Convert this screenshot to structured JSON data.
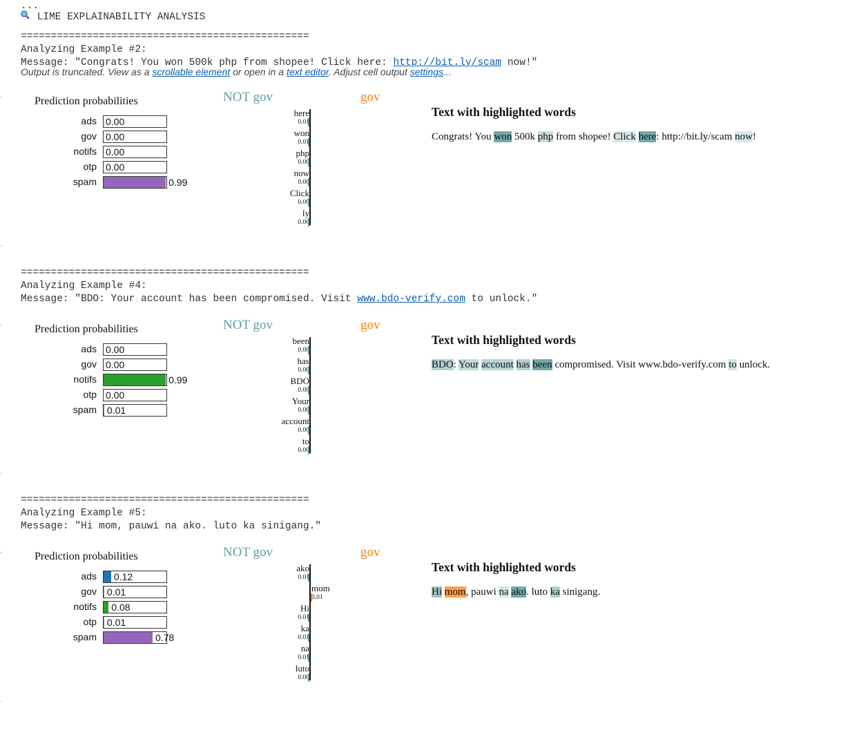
{
  "top": {
    "ellipsis": "...",
    "icon": "magnifier-icon",
    "title": "LIME EXPLAINABILITY ANALYSIS",
    "separator": "================================================",
    "truncation": {
      "prefix": "Output is truncated. View as a ",
      "link1": "scrollable element",
      "mid": " or open in a ",
      "link2": "text editor",
      "mid2": ". Adjust cell output ",
      "link3": "settings",
      "suffix": "..."
    }
  },
  "colors": {
    "ads": "#1f77b4",
    "notifs": "#2ca02c",
    "spam": "#9467bd",
    "not_class": "#5f9ea0",
    "class": "#ff7f0e"
  },
  "labels": {
    "prediction_probabilities": "Prediction probabilities",
    "not_class": "NOT gov",
    "class": "gov",
    "highlight_title": "Text with highlighted words"
  },
  "examples": [
    {
      "heading": "Analyzing Example #2:",
      "message_prefix": "Message: \"Congrats! You won 500k php from shopee! Click here: ",
      "message_link": "http://bit.ly/scam",
      "message_suffix": " now!\"",
      "probs": [
        {
          "label": "ads",
          "value": 0.0,
          "text": "0.00"
        },
        {
          "label": "gov",
          "value": 0.0,
          "text": "0.00"
        },
        {
          "label": "notifs",
          "value": 0.0,
          "text": "0.00"
        },
        {
          "label": "otp",
          "value": 0.0,
          "text": "0.00"
        },
        {
          "label": "spam",
          "value": 0.99,
          "text": "0.99"
        }
      ],
      "features": [
        {
          "word": "here",
          "weight": -0.01,
          "text": "0.01"
        },
        {
          "word": "won",
          "weight": -0.01,
          "text": "0.01"
        },
        {
          "word": "php",
          "weight": -0.0,
          "text": "0.00"
        },
        {
          "word": "now",
          "weight": -0.0,
          "text": "0.00"
        },
        {
          "word": "Click",
          "weight": -0.0,
          "text": "0.00"
        },
        {
          "word": "ly",
          "weight": -0.0,
          "text": "0.00"
        }
      ],
      "tokens": [
        {
          "t": "Congrats! You "
        },
        {
          "t": "won",
          "w": 0.9
        },
        {
          "t": " 500k "
        },
        {
          "t": "php",
          "w": 0.35
        },
        {
          "t": " from shopee! "
        },
        {
          "t": "Click",
          "w": 0.25
        },
        {
          "t": " "
        },
        {
          "t": "here",
          "w": 0.9
        },
        {
          "t": ": http://bit."
        },
        {
          "t": "ly",
          "w": 0.15
        },
        {
          "t": "/scam "
        },
        {
          "t": "now",
          "w": 0.25
        },
        {
          "t": "!"
        }
      ]
    },
    {
      "heading": "Analyzing Example #4:",
      "message_prefix": "Message: \"BDO: Your account has been compromised. Visit ",
      "message_link": "www.bdo-verify.com",
      "message_suffix": " to unlock.\"",
      "probs": [
        {
          "label": "ads",
          "value": 0.0,
          "text": "0.00"
        },
        {
          "label": "gov",
          "value": 0.0,
          "text": "0.00"
        },
        {
          "label": "notifs",
          "value": 0.99,
          "text": "0.99"
        },
        {
          "label": "otp",
          "value": 0.0,
          "text": "0.00"
        },
        {
          "label": "spam",
          "value": 0.01,
          "text": "0.01"
        }
      ],
      "features": [
        {
          "word": "been",
          "weight": -0.0,
          "text": "0.00"
        },
        {
          "word": "has",
          "weight": -0.0,
          "text": "0.00"
        },
        {
          "word": "BDO",
          "weight": -0.0,
          "text": "0.00"
        },
        {
          "word": "Your",
          "weight": -0.0,
          "text": "0.00"
        },
        {
          "word": "account",
          "weight": -0.0,
          "text": "0.00"
        },
        {
          "word": "to",
          "weight": -0.0,
          "text": "0.00"
        }
      ],
      "tokens": [
        {
          "t": "BDO",
          "w": 0.5
        },
        {
          "t": ": "
        },
        {
          "t": "Your",
          "w": 0.4
        },
        {
          "t": " "
        },
        {
          "t": "account",
          "w": 0.45
        },
        {
          "t": " "
        },
        {
          "t": "has",
          "w": 0.5
        },
        {
          "t": " "
        },
        {
          "t": "been",
          "w": 0.9
        },
        {
          "t": " compromised. Visit www.bdo-verify.com "
        },
        {
          "t": "to",
          "w": 0.3
        },
        {
          "t": " unlock."
        }
      ]
    },
    {
      "heading": "Analyzing Example #5:",
      "message_prefix": "Message: \"Hi mom, pauwi na ako. luto ka sinigang.\"",
      "message_link": "",
      "message_suffix": "",
      "probs": [
        {
          "label": "ads",
          "value": 0.12,
          "text": "0.12"
        },
        {
          "label": "gov",
          "value": 0.01,
          "text": "0.01"
        },
        {
          "label": "notifs",
          "value": 0.08,
          "text": "0.08"
        },
        {
          "label": "otp",
          "value": 0.01,
          "text": "0.01"
        },
        {
          "label": "spam",
          "value": 0.78,
          "text": "0.78"
        }
      ],
      "features": [
        {
          "word": "ako",
          "weight": -0.01,
          "text": "0.01"
        },
        {
          "word": "mom",
          "weight": 0.01,
          "text": "0.01"
        },
        {
          "word": "Hi",
          "weight": -0.01,
          "text": "0.01"
        },
        {
          "word": "ka",
          "weight": -0.01,
          "text": "0.01"
        },
        {
          "word": "na",
          "weight": -0.01,
          "text": "0.01"
        },
        {
          "word": "luto",
          "weight": -0.0,
          "text": "0.00"
        }
      ],
      "tokens": [
        {
          "t": "Hi",
          "w": 0.6
        },
        {
          "t": " "
        },
        {
          "t": "mom",
          "w": 0.9,
          "pos": true
        },
        {
          "t": ", pauwi "
        },
        {
          "t": "na",
          "w": 0.3
        },
        {
          "t": " "
        },
        {
          "t": "ako",
          "w": 0.9
        },
        {
          "t": ". "
        },
        {
          "t": "luto",
          "w": 0.05
        },
        {
          "t": " "
        },
        {
          "t": "ka",
          "w": 0.5
        },
        {
          "t": " sinigang."
        }
      ]
    }
  ]
}
